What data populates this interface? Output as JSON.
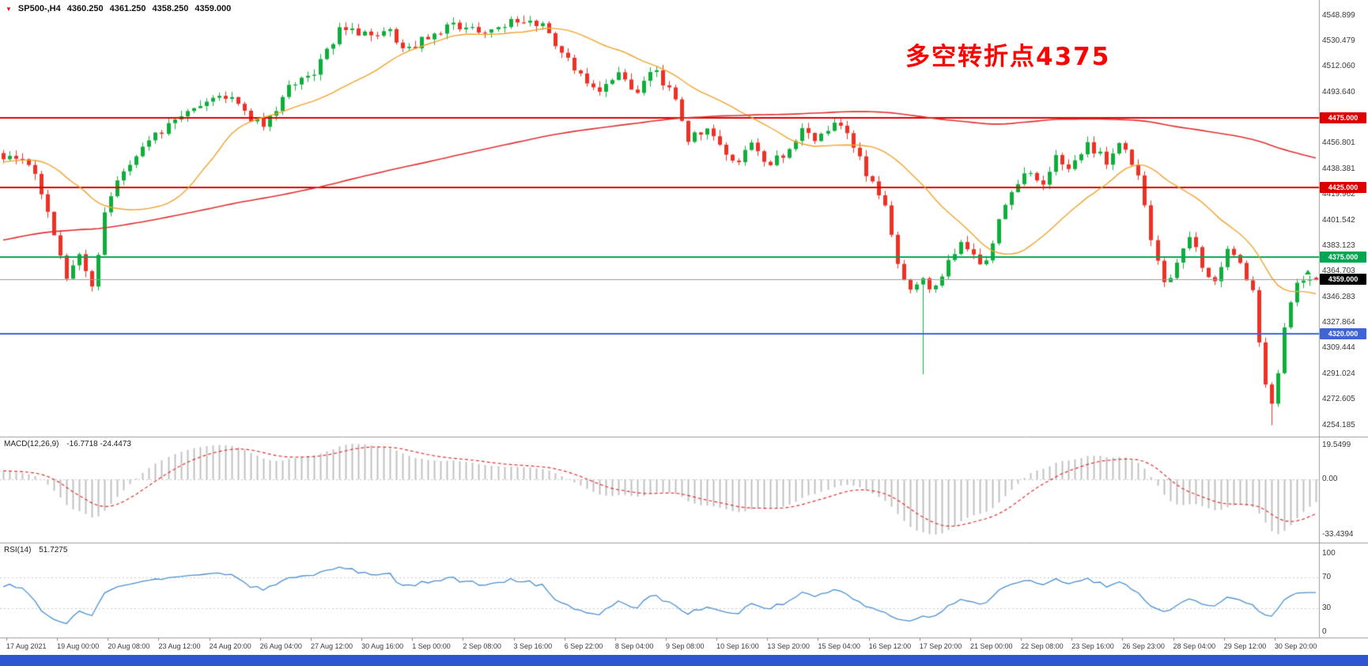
{
  "header": {
    "icon": "▼",
    "symbol": "SP500-,H4",
    "open": "4360.250",
    "high": "4361.250",
    "low": "4358.250",
    "close": "4359.000"
  },
  "annotation": {
    "text": "多空转折点4375",
    "color": "#ff0000"
  },
  "colors": {
    "bull": "#0fae3c",
    "bear": "#ee3025",
    "macd_hist": "#c0c0c0",
    "macd_signal": "#e03131",
    "rsi_line": "#4a90d2",
    "sep": "#9c9c9c",
    "bottom_bar": "#2f55cf"
  },
  "price_axis": {
    "grid": [
      {
        "text": "4548.899",
        "price": 4548.899
      },
      {
        "text": "4530.479",
        "price": 4530.479
      },
      {
        "text": "4512.060",
        "price": 4512.06
      },
      {
        "text": "4493.640",
        "price": 4493.64
      },
      {
        "text": "4456.801",
        "price": 4456.801
      },
      {
        "text": "4438.381",
        "price": 4438.381
      },
      {
        "text": "4419.962",
        "price": 4419.962
      },
      {
        "text": "4401.542",
        "price": 4401.542
      },
      {
        "text": "4383.123",
        "price": 4383.123
      },
      {
        "text": "4364.703",
        "price": 4364.703
      },
      {
        "text": "4346.283",
        "price": 4346.283
      },
      {
        "text": "4327.864",
        "price": 4327.864
      },
      {
        "text": "4309.444",
        "price": 4309.444
      },
      {
        "text": "4291.024",
        "price": 4291.024
      },
      {
        "text": "4272.605",
        "price": 4272.605
      },
      {
        "text": "4254.185",
        "price": 4254.185
      }
    ]
  },
  "hlines": [
    {
      "label": "4475.000",
      "price": 4475.0,
      "color": "#dd0000",
      "chip_bg": "#dd0000"
    },
    {
      "label": "4425.000",
      "price": 4425.0,
      "color": "#dd0000",
      "chip_bg": "#dd0000"
    },
    {
      "label": "4375.000",
      "price": 4375.0,
      "color": "#00a651",
      "chip_bg": "#00a651"
    },
    {
      "label": "4320.000",
      "price": 4320.0,
      "color": "#3f64d7",
      "chip_bg": "#3f64d7"
    }
  ],
  "current_price": {
    "label": "4359.000",
    "price": 4359.0,
    "line_color": "#9b9b9b",
    "chip_bg": "#000000"
  },
  "chart_data": {
    "type": "candlestick",
    "symbol": "SP500-",
    "timeframe": "H4",
    "y_range": [
      4246,
      4560
    ],
    "n_candles": 208,
    "history_candles": 150,
    "x_labels": [
      "17 Aug 2021",
      "19 Aug 00:00",
      "20 Aug 08:00",
      "23 Aug 12:00",
      "24 Aug 20:00",
      "26 Aug 04:00",
      "27 Aug 12:00",
      "30 Aug 16:00",
      "1 Sep 00:00",
      "2 Sep 08:00",
      "3 Sep 16:00",
      "6 Sep 22:00",
      "8 Sep 04:00",
      "9 Sep 08:00",
      "10 Sep 16:00",
      "13 Sep 20:00",
      "15 Sep 04:00",
      "16 Sep 12:00",
      "17 Sep 20:00",
      "21 Sep 00:00",
      "22 Sep 08:00",
      "23 Sep 16:00",
      "26 Sep 23:00",
      "28 Sep 04:00",
      "29 Sep 12:00",
      "30 Sep 20:00"
    ],
    "price_path": [
      [
        -0.72,
        4310
      ],
      [
        -0.45,
        4372
      ],
      [
        -0.22,
        4420
      ],
      [
        -0.06,
        4442
      ],
      [
        0.0,
        4447
      ],
      [
        0.022,
        4441
      ],
      [
        0.035,
        4402
      ],
      [
        0.048,
        4362
      ],
      [
        0.058,
        4378
      ],
      [
        0.067,
        4352
      ],
      [
        0.08,
        4418
      ],
      [
        0.096,
        4440
      ],
      [
        0.112,
        4462
      ],
      [
        0.128,
        4470
      ],
      [
        0.147,
        4481
      ],
      [
        0.167,
        4494
      ],
      [
        0.186,
        4478
      ],
      [
        0.199,
        4466
      ],
      [
        0.212,
        4492
      ],
      [
        0.224,
        4501
      ],
      [
        0.24,
        4512
      ],
      [
        0.256,
        4538
      ],
      [
        0.276,
        4534
      ],
      [
        0.292,
        4540
      ],
      [
        0.308,
        4522
      ],
      [
        0.321,
        4534
      ],
      [
        0.34,
        4542
      ],
      [
        0.359,
        4537
      ],
      [
        0.378,
        4541
      ],
      [
        0.397,
        4546
      ],
      [
        0.413,
        4539
      ],
      [
        0.426,
        4519
      ],
      [
        0.442,
        4504
      ],
      [
        0.455,
        4493
      ],
      [
        0.468,
        4506
      ],
      [
        0.481,
        4491
      ],
      [
        0.494,
        4511
      ],
      [
        0.513,
        4489
      ],
      [
        0.522,
        4459
      ],
      [
        0.535,
        4469
      ],
      [
        0.545,
        4459
      ],
      [
        0.558,
        4443
      ],
      [
        0.571,
        4456
      ],
      [
        0.583,
        4439
      ],
      [
        0.596,
        4451
      ],
      [
        0.609,
        4466
      ],
      [
        0.622,
        4459
      ],
      [
        0.631,
        4471
      ],
      [
        0.641,
        4464
      ],
      [
        0.651,
        4448
      ],
      [
        0.66,
        4429
      ],
      [
        0.67,
        4419
      ],
      [
        0.679,
        4378
      ],
      [
        0.689,
        4353
      ],
      [
        0.699,
        4359
      ],
      [
        0.708,
        4349
      ],
      [
        0.718,
        4366
      ],
      [
        0.728,
        4386
      ],
      [
        0.737,
        4379
      ],
      [
        0.747,
        4363
      ],
      [
        0.756,
        4396
      ],
      [
        0.769,
        4421
      ],
      [
        0.779,
        4441
      ],
      [
        0.792,
        4429
      ],
      [
        0.801,
        4446
      ],
      [
        0.814,
        4439
      ],
      [
        0.827,
        4456
      ],
      [
        0.84,
        4444
      ],
      [
        0.853,
        4457
      ],
      [
        0.865,
        4430
      ],
      [
        0.875,
        4388
      ],
      [
        0.885,
        4352
      ],
      [
        0.894,
        4371
      ],
      [
        0.904,
        4391
      ],
      [
        0.913,
        4369
      ],
      [
        0.923,
        4354
      ],
      [
        0.933,
        4386
      ],
      [
        0.942,
        4373
      ],
      [
        0.952,
        4348
      ],
      [
        0.958,
        4298
      ],
      [
        0.965,
        4268
      ],
      [
        0.971,
        4292
      ],
      [
        0.977,
        4330
      ],
      [
        0.984,
        4356
      ],
      [
        1.0,
        4359
      ]
    ],
    "special_points": [
      {
        "kind": "high",
        "frac": 0.397,
        "price": 4548.899
      },
      {
        "kind": "low",
        "frac": 0.699,
        "price": 4290.8
      },
      {
        "kind": "low",
        "frac": 0.965,
        "price": 4254.185
      }
    ],
    "last_candle": {
      "open": 4360.25,
      "high": 4361.25,
      "low": 4358.25,
      "close": 4359.0
    },
    "overlays": [
      {
        "name": "ma-fast",
        "type": "sma",
        "period": 21,
        "color": "#f0a22e"
      },
      {
        "name": "ma-slow",
        "type": "sma",
        "period": 150,
        "color": "#e03131"
      }
    ],
    "indicators": [
      {
        "id": "macd",
        "label": "MACD(12,26,9)",
        "value_text": "-16.7718 -24.4473",
        "fast": 12,
        "slow": 26,
        "signal": 9,
        "axis_labels": [
          "19.5499",
          "0.00",
          "-33.4394"
        ]
      },
      {
        "id": "rsi",
        "label": "RSI(14)",
        "value_text": "51.7275",
        "period": 14,
        "levels": [
          70,
          30
        ],
        "axis_labels": [
          "100",
          "70",
          "30",
          "0"
        ]
      }
    ]
  }
}
